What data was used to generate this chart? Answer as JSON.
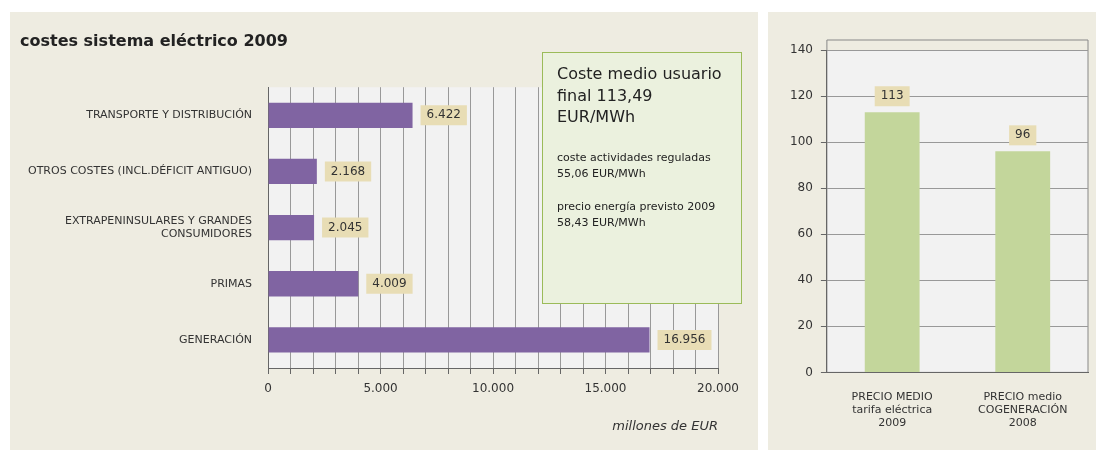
{
  "chart_data": [
    {
      "type": "bar",
      "orientation": "horizontal",
      "title": "costes sistema eléctrico 2009",
      "xlabel": "millones de EUR",
      "categories": [
        "TRANSPORTE Y DISTRIBUCIÓN",
        "OTROS COSTES (INCL.DÉFICIT  ANTIGUO)",
        "EXTRAPENINSULARES  Y GRANDES CONSUMIDORES",
        "PRIMAS",
        "GENERACIÓN"
      ],
      "values": [
        6422,
        2168,
        2045,
        4009,
        16956
      ],
      "value_labels": [
        "6.422",
        "2.168",
        "2.045",
        "4.009",
        "16.956"
      ],
      "color": "#8064a2",
      "xlim": [
        0,
        20000
      ],
      "xticks": [
        0,
        {
          "value": 1000,
          "label": null
        },
        {
          "value": 2000,
          "label": null
        },
        {
          "value": 3000,
          "label": null
        },
        {
          "value": 4000,
          "label": null
        },
        {
          "value": 5000,
          "label": "5.000"
        },
        {
          "value": 6000,
          "label": null
        },
        {
          "value": 7000,
          "label": null
        },
        {
          "value": 8000,
          "label": null
        },
        {
          "value": 9000,
          "label": null
        },
        {
          "value": 10000,
          "label": "10.000"
        },
        {
          "value": 11000,
          "label": null
        },
        {
          "value": 12000,
          "label": null
        },
        {
          "value": 13000,
          "label": null
        },
        {
          "value": 14000,
          "label": null
        },
        {
          "value": 15000,
          "label": "15.000"
        },
        {
          "value": 16000,
          "label": null
        },
        {
          "value": 17000,
          "label": null
        },
        {
          "value": 18000,
          "label": null
        },
        {
          "value": 19000,
          "label": null
        },
        {
          "value": 20000,
          "label": "20.000"
        }
      ],
      "grid": "x",
      "annotations": [
        "Coste medio usuario final 113,49 EUR/MWh",
        "coste actividades reguladas 55,06 EUR/MWh",
        "precio energía previsto 2009 58,43 EUR/MWh"
      ]
    },
    {
      "type": "bar",
      "categories": [
        "PRECIO MEDIO tarifa eléctrica 2009",
        "PRECIO medio COGENERACIÓN 2008"
      ],
      "values": [
        113,
        96
      ],
      "color": "#c3d69b",
      "data_labels": true,
      "ylim": [
        0,
        140
      ],
      "yticks": [
        0,
        20,
        40,
        60,
        80,
        100,
        120,
        140
      ],
      "grid": "y"
    }
  ]
}
